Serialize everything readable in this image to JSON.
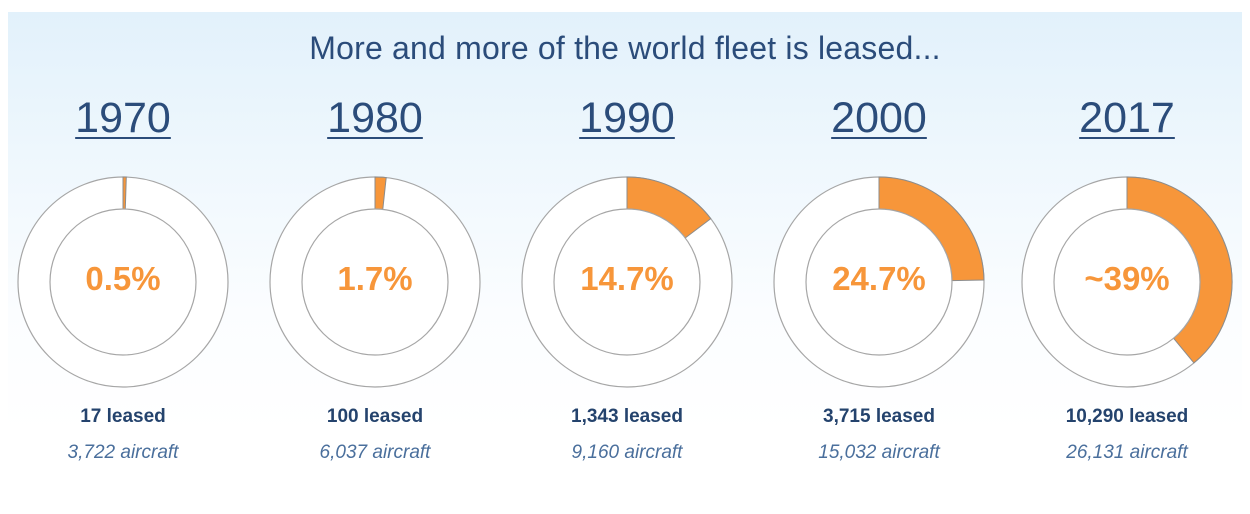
{
  "title": "More and more of the world fleet is leased...",
  "colors": {
    "leased": "#f7963a",
    "ring_stroke": "#a6a6a6",
    "text": "#2b4c7a"
  },
  "chart_data": {
    "type": "pie",
    "title": "More and more of the world fleet is leased...",
    "panels": [
      {
        "year": "1970",
        "percent": 0.5,
        "label": "0.5%",
        "leased": "17 leased",
        "aircraft": "3,722 aircraft"
      },
      {
        "year": "1980",
        "percent": 1.7,
        "label": "1.7%",
        "leased": "100 leased",
        "aircraft": "6,037 aircraft"
      },
      {
        "year": "1990",
        "percent": 14.7,
        "label": "14.7%",
        "leased": "1,343 leased",
        "aircraft": "9,160 aircraft"
      },
      {
        "year": "2000",
        "percent": 24.7,
        "label": "24.7%",
        "leased": "3,715 leased",
        "aircraft": "15,032 aircraft"
      },
      {
        "year": "2017",
        "percent": 39,
        "label": "~39%",
        "leased": "10,290 leased",
        "aircraft": "26,131 aircraft"
      }
    ]
  }
}
